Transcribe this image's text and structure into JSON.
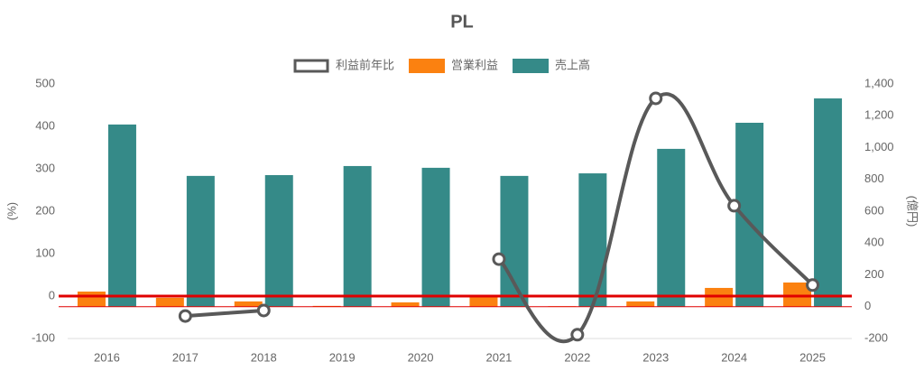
{
  "chart_data": {
    "type": "bar-line",
    "title": "PL",
    "categories": [
      "2016",
      "2017",
      "2018",
      "2019",
      "2020",
      "2021",
      "2022",
      "2023",
      "2024",
      "2025"
    ],
    "series": [
      {
        "name": "利益前年比",
        "type": "line",
        "color": "#595959",
        "axis": "y",
        "values": [
          null,
          -47,
          -34,
          null,
          null,
          87,
          -91,
          466,
          213,
          26
        ]
      },
      {
        "name": "営業利益",
        "type": "bar",
        "color": "#fb8110",
        "axis": "y2",
        "values": [
          95,
          56,
          33,
          5,
          27,
          67,
          3,
          33,
          118,
          152
        ]
      },
      {
        "name": "売上高",
        "type": "bar",
        "color": "#358a88",
        "axis": "y2",
        "values": [
          1145,
          822,
          827,
          884,
          873,
          822,
          838,
          992,
          1156,
          1309
        ]
      }
    ],
    "ylabel": "(%)",
    "y2label": "(億円)",
    "ylim": [
      -100,
      500
    ],
    "yticks": [
      -100,
      0,
      100,
      200,
      300,
      400,
      500
    ],
    "y2lim": [
      -200,
      1400
    ],
    "y2ticks": [
      -200,
      0,
      200,
      400,
      600,
      800,
      {
        "value": 1000,
        "label": "1,000"
      },
      {
        "value": 1200,
        "label": "1,200"
      },
      {
        "value": 1400,
        "label": "1,400"
      }
    ]
  }
}
